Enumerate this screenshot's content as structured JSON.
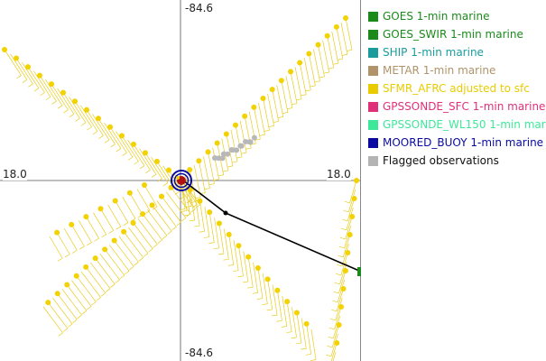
{
  "axes": {
    "top": "-84.6",
    "bottom": "-84.6",
    "left": "18.0",
    "right": "18.0"
  },
  "legend": {
    "items": [
      {
        "label": "GOES 1-min marine",
        "color": "#1a8a1a"
      },
      {
        "label": "GOES_SWIR 1-min marine",
        "color": "#1a8a1a"
      },
      {
        "label": "SHIP 1-min marine",
        "color": "#1a9c9c"
      },
      {
        "label": "METAR 1-min marine",
        "color": "#b0936a"
      },
      {
        "label": "SFMR_AFRC adjusted to sfc",
        "color": "#e8cc00"
      },
      {
        "label": "GPSSONDE_SFC 1-min marine",
        "color": "#e0307a"
      },
      {
        "label": "GPSSONDE_WL150 1-min mar",
        "color": "#3de89a"
      },
      {
        "label": "MOORED_BUOY 1-min marine",
        "color": "#0a0aa0"
      },
      {
        "label": "Flagged observations",
        "color": "#b4b4b4",
        "text_color": "#111111"
      }
    ]
  },
  "colors": {
    "sfmr": "#f2d200",
    "barb": "#e8cc20",
    "flagged": "#b8b8b8",
    "track": "#000000",
    "buoy_ring": "#0a0aa0",
    "buoy_center": "#b01010",
    "goes": "#1a8a1a"
  }
}
